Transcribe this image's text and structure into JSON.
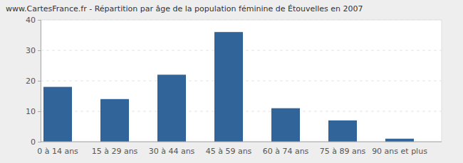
{
  "chart_data": {
    "type": "bar",
    "title": "www.CartesFrance.fr - Répartition par âge de la population féminine de Étouvelles en 2007",
    "categories": [
      "0 à 14 ans",
      "15 à 29 ans",
      "30 à 44 ans",
      "45 à 59 ans",
      "60 à 74 ans",
      "75 à 89 ans",
      "90 ans et plus"
    ],
    "values": [
      18,
      14,
      22,
      36,
      11,
      7,
      1
    ],
    "color": "#31659a",
    "ylim": [
      0,
      40
    ],
    "yticks": [
      0,
      10,
      20,
      30,
      40
    ],
    "grid": true
  }
}
